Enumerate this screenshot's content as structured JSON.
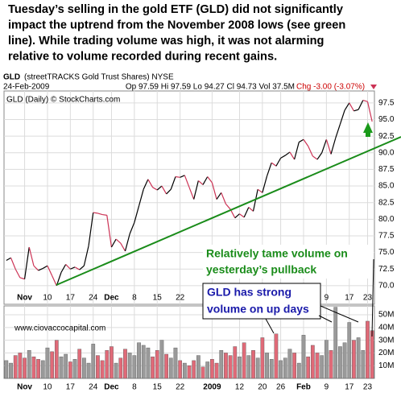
{
  "headline": [
    "Tuesday’s selling in the gold ETF (GLD) did not significantly",
    "impact the uptrend from the November 2008 lows (see green",
    "line).  While trading volume was high, it was not alarming",
    "relative to volume recorded during recent gains."
  ],
  "header": {
    "symbol": "GLD",
    "name": "(streetTRACKS Gold Trust Shares) NYSE",
    "date": "24-Feb-2009",
    "quote": "Op 97.59 Hi 97.59 Lo 94.27 Cl 94.73 Vol 37.5M",
    "change": "Chg -3.00 (-3.07%)"
  },
  "chart_data": [
    {
      "type": "line",
      "label": "GLD (Daily) © StockCharts.com",
      "up_color": "#000000",
      "down_color": "#cc3355",
      "grid": true,
      "categories": [
        null,
        null,
        null,
        null,
        "Nov",
        null,
        null,
        null,
        null,
        "10",
        null,
        null,
        null,
        null,
        "17",
        null,
        null,
        null,
        null,
        "24",
        null,
        null,
        null,
        "Dec",
        null,
        null,
        null,
        null,
        "8",
        null,
        null,
        null,
        null,
        "15",
        null,
        null,
        null,
        null,
        "22",
        null,
        null,
        null,
        null,
        null,
        null,
        "2009",
        null,
        null,
        null,
        null,
        null,
        "12",
        null,
        null,
        null,
        null,
        "20",
        null,
        null,
        null,
        "26",
        null,
        null,
        null,
        null,
        "Feb",
        null,
        null,
        null,
        null,
        "9",
        null,
        null,
        null,
        null,
        "17",
        null,
        null,
        null,
        "23",
        null
      ],
      "values": [
        73.8,
        74.2,
        72.5,
        71.2,
        71.0,
        75.8,
        73.0,
        72.3,
        72.6,
        73.0,
        71.5,
        70.0,
        72.0,
        73.2,
        72.5,
        72.8,
        72.4,
        73.0,
        76.0,
        81.0,
        80.9,
        80.7,
        80.6,
        75.8,
        77.0,
        76.4,
        75.2,
        77.8,
        79.5,
        82.0,
        84.5,
        86.0,
        84.8,
        84.4,
        85.0,
        83.8,
        84.5,
        86.4,
        86.3,
        86.6,
        84.8,
        83.0,
        85.8,
        85.2,
        86.4,
        85.5,
        83.0,
        84.0,
        82.3,
        81.5,
        80.2,
        80.8,
        80.3,
        81.8,
        81.2,
        84.5,
        84.0,
        86.5,
        88.5,
        88.0,
        89.2,
        89.6,
        90.1,
        89.0,
        91.6,
        92.0,
        91.0,
        89.5,
        89.0,
        90.0,
        92.0,
        89.8,
        92.2,
        94.3,
        96.4,
        97.5,
        96.3,
        96.5,
        97.9,
        97.7,
        94.7
      ],
      "ylim": [
        67.2,
        99.3
      ],
      "yticks": [
        {
          "value": 70,
          "label": "70.0"
        },
        72.5,
        {
          "value": 75,
          "label": "75.0"
        },
        77.5,
        {
          "value": 80,
          "label": "80.0"
        },
        82.5,
        {
          "value": 85,
          "label": "85.0"
        },
        87.5,
        {
          "value": 90,
          "label": "90.0"
        },
        92.5,
        {
          "value": 95,
          "label": "95.0"
        },
        97.5
      ],
      "annotations": [
        [
          "Relatively tame volume on",
          "yesterday’s pullback"
        ],
        [
          "GLD has strong",
          "volume on up days"
        ]
      ]
    },
    {
      "type": "bar",
      "label": "www.ciovaccocapital.com",
      "up_color": "#9a9a9a",
      "down_color": "#e06a78",
      "grid": true,
      "values": [
        14,
        12,
        18,
        20,
        16,
        22,
        17,
        15,
        14,
        24,
        21,
        30,
        17,
        19,
        13,
        15,
        23,
        16,
        12,
        27,
        18,
        14,
        22,
        25,
        12,
        16,
        23,
        20,
        18,
        28,
        26,
        24,
        17,
        22,
        30,
        19,
        16,
        24,
        14,
        12,
        10,
        14,
        18,
        9,
        13,
        15,
        12,
        22,
        20,
        18,
        25,
        17,
        28,
        18,
        22,
        16,
        32,
        20,
        15,
        35,
        14,
        16,
        23,
        20,
        12,
        34,
        17,
        26,
        20,
        18,
        30,
        22,
        56,
        25,
        28,
        44,
        30,
        32,
        22,
        45,
        37.5
      ],
      "ylim": [
        0,
        57
      ],
      "yticks": [
        {
          "value": 10,
          "label": "10M"
        },
        {
          "value": 20,
          "label": "20M"
        },
        {
          "value": 30,
          "label": "30M"
        },
        {
          "value": 40,
          "label": "40M"
        },
        {
          "value": 50,
          "label": "50M"
        }
      ]
    }
  ]
}
